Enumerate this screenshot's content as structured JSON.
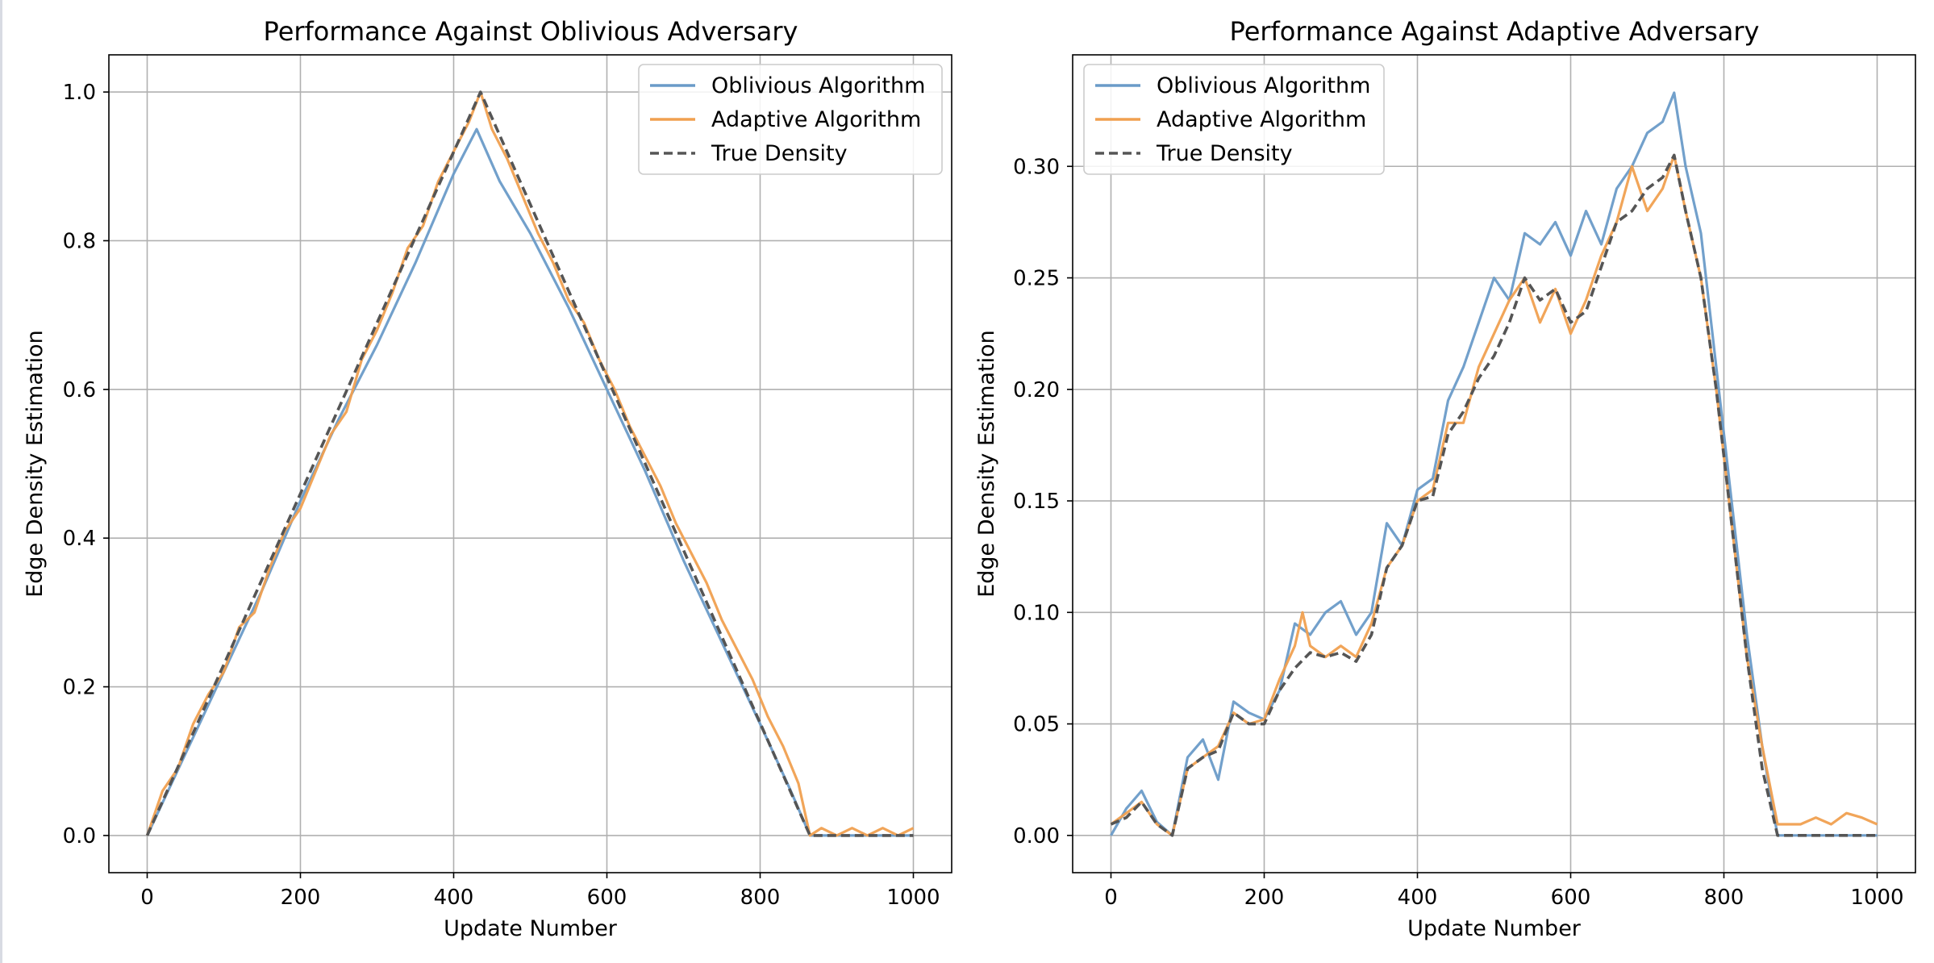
{
  "colors": {
    "oblivious": "#6a9bc8",
    "adaptive": "#f0a050",
    "true_density": "#555555",
    "grid": "#b0b0b0",
    "axes": "#000000"
  },
  "chart_data": [
    {
      "type": "line",
      "title": "Performance Against Oblivious Adversary",
      "xlabel": "Update Number",
      "ylabel": "Edge Density Estimation",
      "xlim": [
        -50,
        1050
      ],
      "ylim": [
        -0.05,
        1.05
      ],
      "xticks": [
        0,
        200,
        400,
        600,
        800,
        1000
      ],
      "xtick_labels": [
        "0",
        "200",
        "400",
        "600",
        "800",
        "1000"
      ],
      "yticks": [
        0.0,
        0.2,
        0.4,
        0.6,
        0.8,
        1.0
      ],
      "ytick_labels": [
        "0.0",
        "0.2",
        "0.4",
        "0.6",
        "0.8",
        "1.0"
      ],
      "grid": true,
      "legend_position": "top-right",
      "legend": [
        "Oblivious Algorithm",
        "Adaptive Algorithm",
        "True Density"
      ],
      "series": [
        {
          "name": "Oblivious Algorithm",
          "style": "solid",
          "x": [
            0,
            50,
            100,
            150,
            200,
            250,
            300,
            350,
            400,
            430,
            460,
            500,
            550,
            600,
            650,
            700,
            750,
            800,
            840,
            865,
            900,
            950,
            1000
          ],
          "y": [
            0.0,
            0.11,
            0.22,
            0.33,
            0.45,
            0.56,
            0.66,
            0.77,
            0.89,
            0.95,
            0.88,
            0.81,
            0.71,
            0.6,
            0.49,
            0.37,
            0.26,
            0.15,
            0.06,
            0.0,
            0.0,
            0.0,
            0.0
          ]
        },
        {
          "name": "Adaptive Algorithm",
          "style": "solid",
          "x": [
            0,
            20,
            40,
            60,
            80,
            100,
            120,
            140,
            160,
            180,
            200,
            220,
            240,
            260,
            280,
            300,
            320,
            340,
            360,
            380,
            400,
            420,
            435,
            450,
            470,
            490,
            510,
            530,
            550,
            570,
            590,
            610,
            630,
            650,
            670,
            690,
            710,
            730,
            750,
            770,
            790,
            810,
            830,
            850,
            865,
            880,
            900,
            920,
            940,
            960,
            980,
            1000
          ],
          "y": [
            0.0,
            0.06,
            0.09,
            0.15,
            0.19,
            0.22,
            0.28,
            0.3,
            0.36,
            0.41,
            0.44,
            0.49,
            0.54,
            0.57,
            0.64,
            0.68,
            0.73,
            0.79,
            0.82,
            0.88,
            0.92,
            0.96,
            1.0,
            0.95,
            0.91,
            0.86,
            0.81,
            0.77,
            0.72,
            0.69,
            0.64,
            0.6,
            0.55,
            0.51,
            0.47,
            0.42,
            0.38,
            0.34,
            0.29,
            0.25,
            0.21,
            0.16,
            0.12,
            0.07,
            0.0,
            0.01,
            0.0,
            0.01,
            0.0,
            0.01,
            0.0,
            0.01
          ]
        },
        {
          "name": "True Density",
          "style": "dashed",
          "x": [
            0,
            435,
            865,
            1000
          ],
          "y": [
            0.0,
            1.0,
            0.0,
            0.0
          ]
        }
      ]
    },
    {
      "type": "line",
      "title": "Performance Against Adaptive Adversary",
      "xlabel": "Update Number",
      "ylabel": "Edge Density Estimation",
      "xlim": [
        -50,
        1050
      ],
      "ylim": [
        -0.0167,
        0.35
      ],
      "xticks": [
        0,
        200,
        400,
        600,
        800,
        1000
      ],
      "xtick_labels": [
        "0",
        "200",
        "400",
        "600",
        "800",
        "1000"
      ],
      "yticks": [
        0.0,
        0.05,
        0.1,
        0.15,
        0.2,
        0.25,
        0.3
      ],
      "ytick_labels": [
        "0.00",
        "0.05",
        "0.10",
        "0.15",
        "0.20",
        "0.25",
        "0.30"
      ],
      "grid": true,
      "legend_position": "top-left",
      "legend": [
        "Oblivious Algorithm",
        "Adaptive Algorithm",
        "True Density"
      ],
      "series": [
        {
          "name": "Oblivious Algorithm",
          "style": "solid",
          "x": [
            0,
            20,
            40,
            60,
            80,
            100,
            120,
            140,
            160,
            180,
            200,
            220,
            240,
            260,
            280,
            300,
            320,
            340,
            360,
            380,
            400,
            420,
            440,
            460,
            480,
            500,
            520,
            540,
            560,
            580,
            600,
            620,
            640,
            660,
            680,
            700,
            720,
            735,
            750,
            770,
            790,
            810,
            830,
            850,
            870,
            900,
            950,
            1000
          ],
          "y": [
            0.0,
            0.012,
            0.02,
            0.006,
            0.0,
            0.035,
            0.043,
            0.025,
            0.06,
            0.055,
            0.052,
            0.065,
            0.095,
            0.09,
            0.1,
            0.105,
            0.09,
            0.1,
            0.14,
            0.13,
            0.155,
            0.16,
            0.195,
            0.21,
            0.23,
            0.25,
            0.24,
            0.27,
            0.265,
            0.275,
            0.26,
            0.28,
            0.265,
            0.29,
            0.3,
            0.315,
            0.32,
            0.333,
            0.3,
            0.27,
            0.21,
            0.15,
            0.09,
            0.04,
            0.0,
            0.0,
            0.0,
            0.0
          ]
        },
        {
          "name": "Adaptive Algorithm",
          "style": "solid",
          "x": [
            0,
            20,
            40,
            60,
            80,
            100,
            120,
            140,
            160,
            180,
            200,
            220,
            240,
            250,
            260,
            280,
            300,
            320,
            340,
            360,
            380,
            400,
            420,
            440,
            460,
            480,
            500,
            520,
            540,
            560,
            580,
            600,
            620,
            640,
            660,
            680,
            700,
            720,
            735,
            750,
            770,
            790,
            810,
            830,
            850,
            870,
            900,
            920,
            940,
            960,
            980,
            1000
          ],
          "y": [
            0.005,
            0.01,
            0.015,
            0.005,
            0.0,
            0.03,
            0.035,
            0.04,
            0.055,
            0.05,
            0.052,
            0.07,
            0.085,
            0.1,
            0.085,
            0.08,
            0.085,
            0.08,
            0.095,
            0.12,
            0.13,
            0.15,
            0.155,
            0.185,
            0.185,
            0.21,
            0.225,
            0.24,
            0.25,
            0.23,
            0.245,
            0.225,
            0.24,
            0.26,
            0.275,
            0.3,
            0.28,
            0.29,
            0.305,
            0.28,
            0.25,
            0.2,
            0.14,
            0.08,
            0.04,
            0.005,
            0.005,
            0.008,
            0.005,
            0.01,
            0.008,
            0.005
          ]
        },
        {
          "name": "True Density",
          "style": "dashed",
          "x": [
            0,
            20,
            40,
            60,
            80,
            100,
            120,
            140,
            160,
            180,
            200,
            220,
            240,
            260,
            280,
            300,
            320,
            340,
            360,
            380,
            400,
            420,
            440,
            460,
            480,
            500,
            520,
            540,
            560,
            580,
            600,
            620,
            640,
            660,
            680,
            700,
            720,
            735,
            750,
            770,
            790,
            810,
            830,
            850,
            870,
            900,
            950,
            1000
          ],
          "y": [
            0.005,
            0.008,
            0.015,
            0.005,
            0.0,
            0.03,
            0.035,
            0.038,
            0.055,
            0.05,
            0.05,
            0.065,
            0.075,
            0.082,
            0.08,
            0.082,
            0.078,
            0.09,
            0.12,
            0.13,
            0.15,
            0.152,
            0.18,
            0.19,
            0.205,
            0.215,
            0.23,
            0.25,
            0.24,
            0.245,
            0.23,
            0.235,
            0.255,
            0.275,
            0.28,
            0.29,
            0.295,
            0.305,
            0.28,
            0.25,
            0.2,
            0.14,
            0.08,
            0.03,
            0.0,
            0.0,
            0.0,
            0.0
          ]
        }
      ]
    }
  ]
}
